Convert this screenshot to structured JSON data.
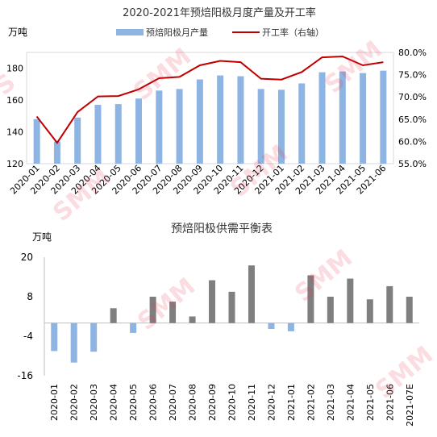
{
  "chart_data": [
    {
      "type": "bar",
      "title": "2020-2021年预焙阳极月度产量及开工率",
      "ylabel": "万吨",
      "ylim": [
        120,
        190
      ],
      "yticks": [
        120,
        140,
        160,
        180
      ],
      "y2lim": [
        0.55,
        0.8
      ],
      "y2ticks": [
        "55.0%",
        "60.0%",
        "65.0%",
        "70.0%",
        "75.0%",
        "80.0%"
      ],
      "legend_placement": "top",
      "categories": [
        "2020-01",
        "2020-02",
        "2020-03",
        "2020-04",
        "2020-05",
        "2020-06",
        "2020-07",
        "2020-08",
        "2020-09",
        "2020-10",
        "2020-11",
        "2020-12",
        "2021-01",
        "2021-02",
        "2021-03",
        "2021-04",
        "2021-05",
        "2021-06"
      ],
      "series": [
        {
          "name": "预焙阳极月产量",
          "kind": "bar",
          "color": "#8DB4E2",
          "values": [
            148,
            134,
            149,
            157,
            157.5,
            161,
            166,
            167,
            173,
            175.5,
            175,
            167,
            166.5,
            170.5,
            177.5,
            178,
            177,
            178.5
          ]
        },
        {
          "name": "开工率（右轴）",
          "kind": "line",
          "axis": "right",
          "color": "#C00000",
          "values": [
            0.656,
            0.597,
            0.666,
            0.701,
            0.702,
            0.717,
            0.742,
            0.745,
            0.771,
            0.781,
            0.778,
            0.741,
            0.739,
            0.756,
            0.789,
            0.791,
            0.771,
            0.778
          ]
        }
      ]
    },
    {
      "type": "bar",
      "title": "预焙阳极供需平衡表",
      "ylabel": "万吨",
      "ylim": [
        -16,
        20
      ],
      "yticks": [
        -16,
        -4,
        8,
        20
      ],
      "categories": [
        "2020-01",
        "2020-02",
        "2020-03",
        "2020-04",
        "2020-05",
        "2020-06",
        "2020-07",
        "2020-08",
        "2020-09",
        "2020-10",
        "2020-11",
        "2020-12",
        "2021-01",
        "2021-02",
        "2021-03",
        "2021-04",
        "2021-05",
        "2021-06",
        "2021-07E"
      ],
      "series": [
        {
          "kind": "bar-dark",
          "color": "#7F7F7F",
          "values": [
            0,
            0,
            0,
            4.5,
            0,
            8,
            6.5,
            2,
            13,
            9.5,
            17.5,
            0,
            0,
            14.5,
            8,
            13.5,
            7.2,
            11.2,
            8
          ]
        },
        {
          "kind": "bar-light",
          "color": "#8DB4E2",
          "values": [
            -8.5,
            -12,
            -8.7,
            0,
            -3,
            0,
            0,
            0,
            0,
            0,
            0,
            -1.8,
            -2.5,
            0,
            0,
            0,
            0,
            0,
            0
          ]
        }
      ]
    }
  ]
}
